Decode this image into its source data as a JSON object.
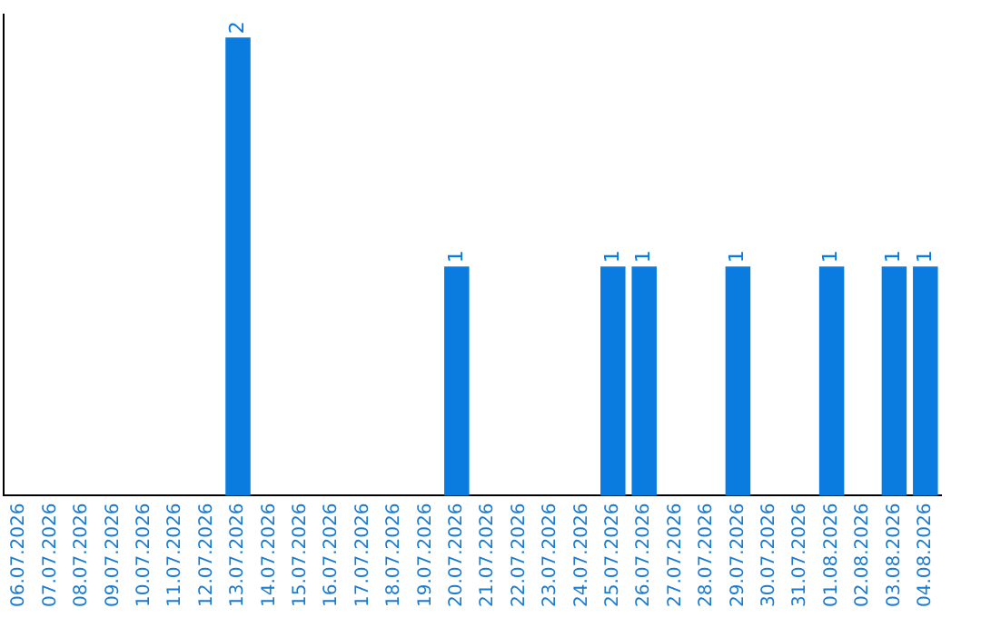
{
  "chart_data": {
    "type": "bar",
    "categories": [
      "06.07.2026",
      "07.07.2026",
      "08.07.2026",
      "09.07.2026",
      "10.07.2026",
      "11.07.2026",
      "12.07.2026",
      "13.07.2026",
      "14.07.2026",
      "15.07.2026",
      "16.07.2026",
      "17.07.2026",
      "18.07.2026",
      "19.07.2026",
      "20.07.2026",
      "21.07.2026",
      "22.07.2026",
      "23.07.2026",
      "24.07.2026",
      "25.07.2026",
      "26.07.2026",
      "27.07.2026",
      "28.07.2026",
      "29.07.2026",
      "30.07.2026",
      "31.07.2026",
      "01.08.2026",
      "02.08.2026",
      "03.08.2026",
      "04.08.2026"
    ],
    "values": [
      0,
      0,
      0,
      0,
      0,
      0,
      0,
      2,
      0,
      0,
      0,
      0,
      0,
      0,
      1,
      0,
      0,
      0,
      0,
      1,
      1,
      0,
      0,
      1,
      0,
      0,
      1,
      0,
      1,
      1
    ],
    "value_labels": [
      null,
      null,
      null,
      null,
      null,
      null,
      null,
      "2",
      null,
      null,
      null,
      null,
      null,
      null,
      "1",
      null,
      null,
      null,
      null,
      "1",
      "1",
      null,
      null,
      "1",
      null,
      null,
      "1",
      null,
      "1",
      "1"
    ],
    "color": "#0a7ce0",
    "ylim": [
      0,
      2.1
    ],
    "tick_labels": "x",
    "grid": false,
    "legend": false
  }
}
